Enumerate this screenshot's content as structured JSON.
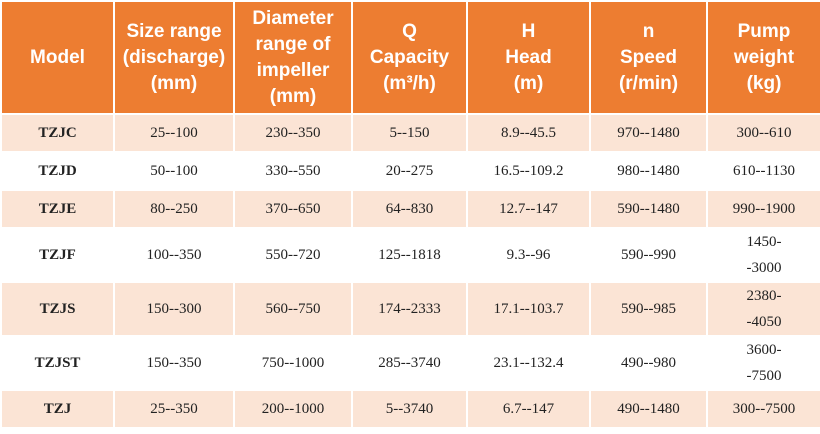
{
  "table": {
    "header": [
      [
        "Model"
      ],
      [
        "Size range",
        "(discharge)",
        "(mm)"
      ],
      [
        "Diameter",
        "range of",
        "impeller",
        "(mm)"
      ],
      [
        "Q",
        "Capacity",
        "(m³/h)"
      ],
      [
        "H",
        "Head",
        "(m)"
      ],
      [
        "n",
        "Speed",
        "(r/min)"
      ],
      [
        "Pump",
        "weight",
        "(kg)"
      ]
    ],
    "rows": [
      [
        "TZJC",
        "25--100",
        "230--350",
        "5--150",
        "8.9--45.5",
        "970--1480",
        "300--610"
      ],
      [
        "TZJD",
        "50--100",
        "330--550",
        "20--275",
        "16.5--109.2",
        "980--1480",
        "610--1130"
      ],
      [
        "TZJE",
        "80--250",
        "370--650",
        "64--830",
        "12.7--147",
        "590--1480",
        "990--1900"
      ],
      [
        "TZJF",
        "100--350",
        "550--720",
        "125--1818",
        "9.3--96",
        "590--990",
        "1450--3000"
      ],
      [
        "TZJS",
        "150--300",
        "560--750",
        "174--2333",
        "17.1--103.7",
        "590--985",
        "2380--4050"
      ],
      [
        "TZJST",
        "150--350",
        "750--1000",
        "285--3740",
        "23.1--132.4",
        "490--980",
        "3600--7500"
      ],
      [
        "TZJ",
        "25--350",
        "200--1000",
        "5--3740",
        "6.7--147",
        "490--1480",
        "300--7500"
      ]
    ]
  }
}
